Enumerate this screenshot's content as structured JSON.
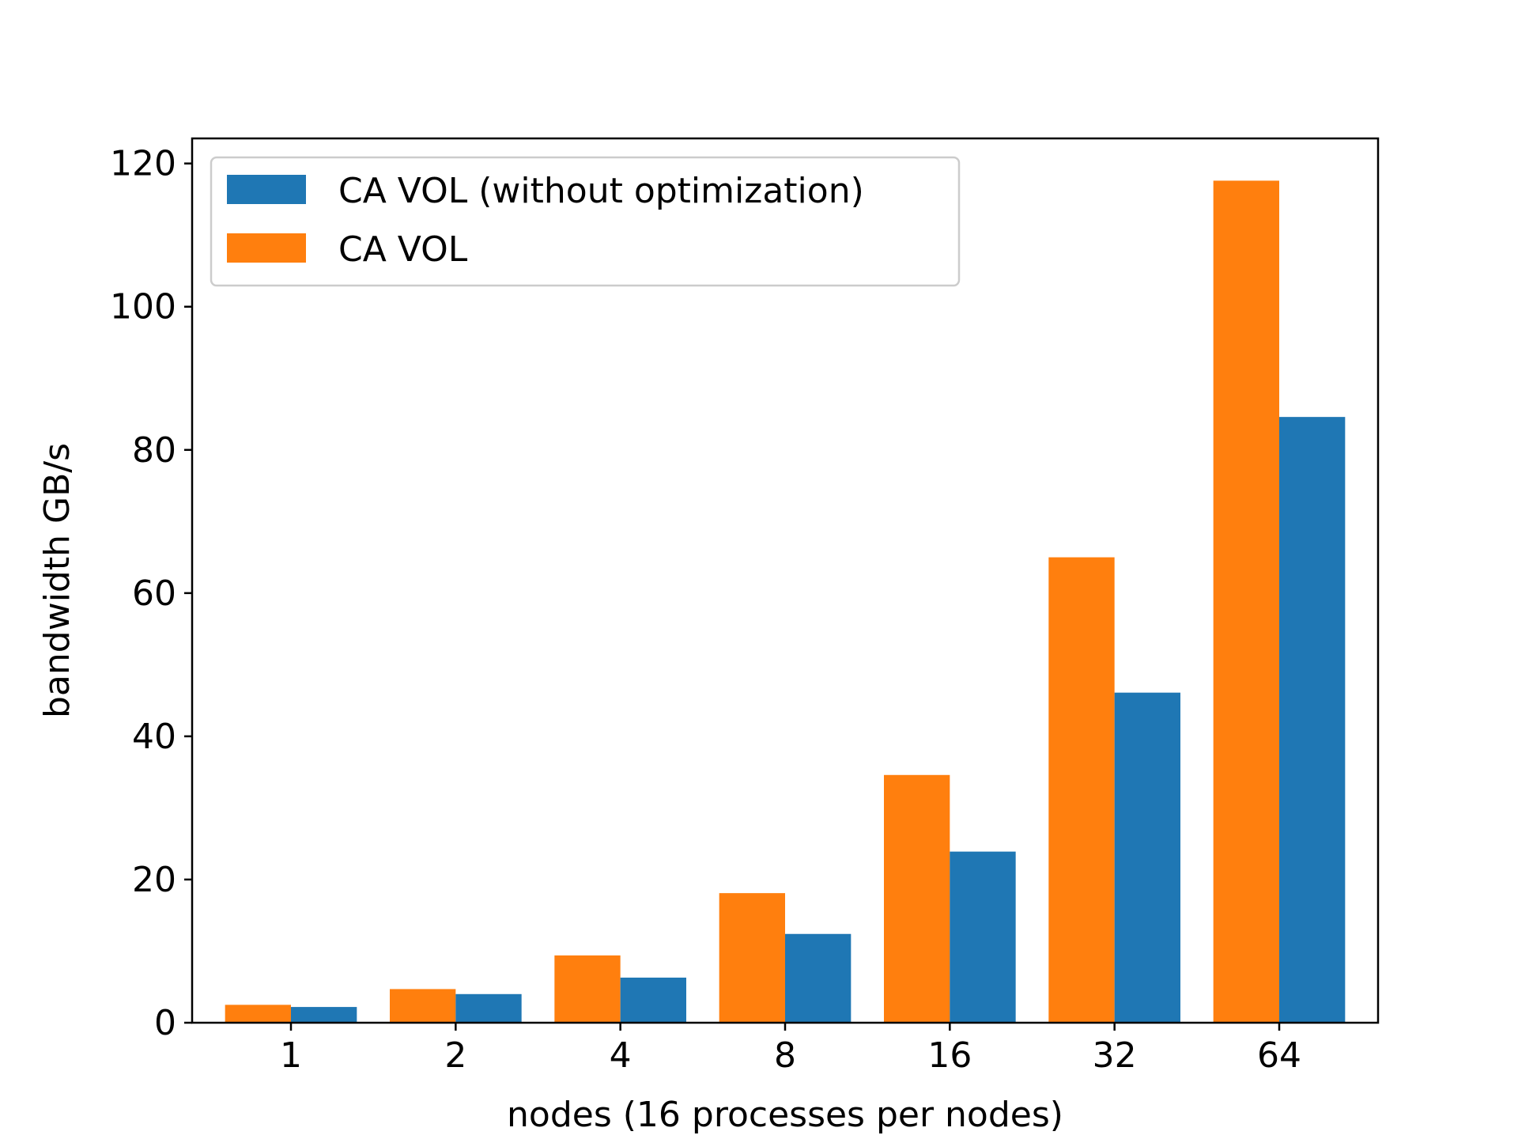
{
  "chart_data": {
    "type": "bar",
    "categories": [
      "1",
      "2",
      "4",
      "8",
      "16",
      "32",
      "64"
    ],
    "series": [
      {
        "name": "CA VOL",
        "color": "#ff7f0e",
        "values": [
          2.5,
          4.7,
          9.4,
          18.1,
          34.6,
          65.0,
          117.6
        ]
      },
      {
        "name": "CA VOL (without optimization)",
        "color": "#1f77b4",
        "values": [
          2.2,
          4.0,
          6.3,
          12.4,
          23.9,
          46.1,
          84.6
        ]
      }
    ],
    "legend_order": [
      1,
      0
    ],
    "legend_position": "upper-left",
    "xlabel": "nodes (16 processes per nodes)",
    "ylabel": "bandwidth GB/s",
    "ylim": [
      0,
      123.5
    ],
    "yticks": [
      0,
      20,
      40,
      60,
      80,
      100,
      120
    ],
    "grid": false
  }
}
